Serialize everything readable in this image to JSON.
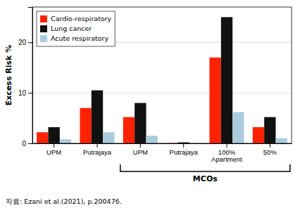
{
  "chart_data": {
    "type": "bar",
    "y_label": "Excess Risk %",
    "categories": [
      "UPM",
      "Putrajaya",
      "UPM",
      "Putrajaya",
      "100%\nApartment",
      "50%"
    ],
    "series": [
      {
        "name": "Cardio-respiratory",
        "color": "#FF2200",
        "values": [
          2.2,
          7.0,
          5.2,
          0.05,
          17.0,
          3.2
        ]
      },
      {
        "name": "Lung cancer",
        "color": "#111111",
        "values": [
          3.2,
          10.5,
          8.0,
          0.2,
          25.0,
          5.2
        ]
      },
      {
        "name": "Acute respiratory",
        "color": "#AACCDD",
        "values": [
          0.8,
          2.2,
          1.5,
          0.05,
          6.2,
          1.0
        ]
      }
    ],
    "ylim": [
      0,
      27
    ],
    "yticks": [
      0,
      10,
      20
    ],
    "grid": true,
    "legend": "upper left",
    "annotation": "MCOs",
    "source": "자료: Ezani et al.(2021), p.200476."
  }
}
